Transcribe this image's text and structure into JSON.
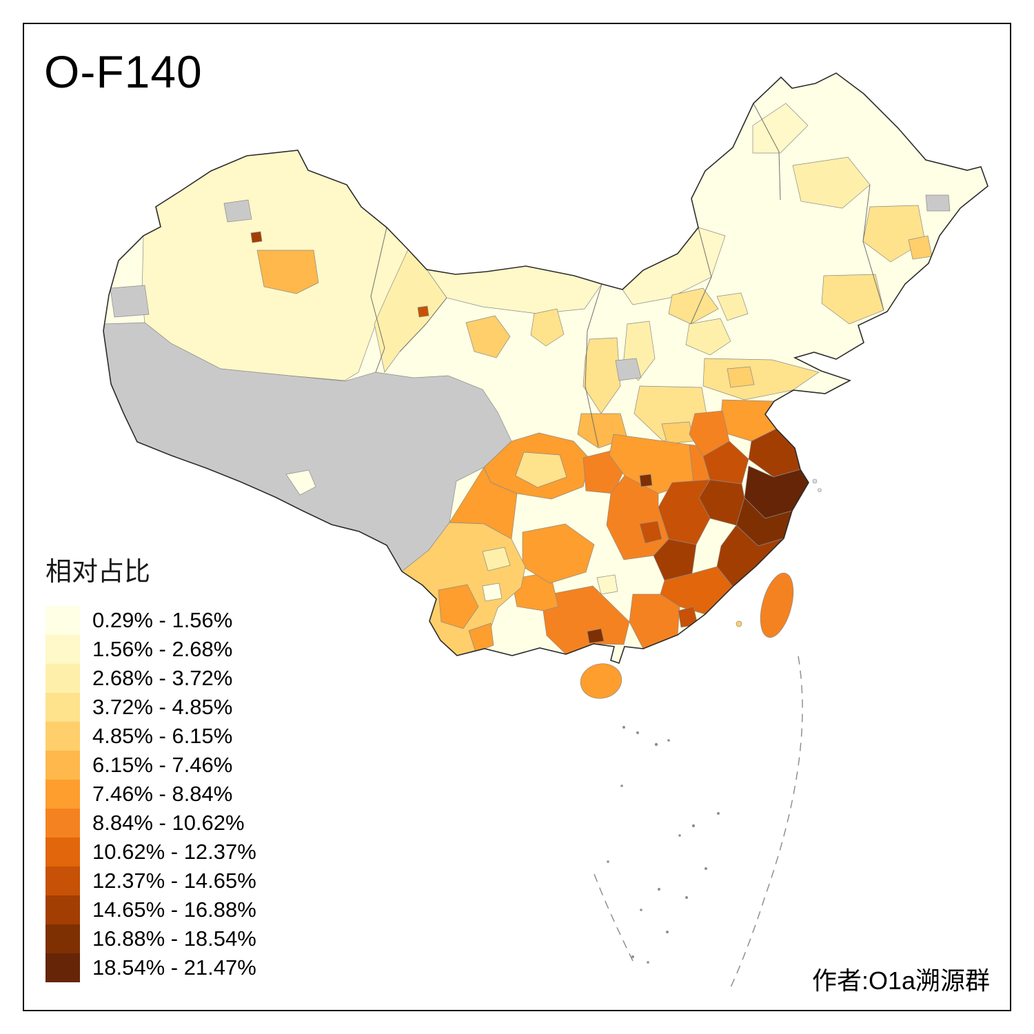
{
  "title": "O-F140",
  "legend": {
    "title": "相对占比",
    "items": [
      {
        "label": "0.29% - 1.56%",
        "color": "#FFFFE5"
      },
      {
        "label": "1.56% - 2.68%",
        "color": "#FFF8C8"
      },
      {
        "label": "2.68% - 3.72%",
        "color": "#FEF0AA"
      },
      {
        "label": "3.72% - 4.85%",
        "color": "#FEE28C"
      },
      {
        "label": "4.85% - 6.15%",
        "color": "#FECF6B"
      },
      {
        "label": "6.15% - 7.46%",
        "color": "#FEB84B"
      },
      {
        "label": "7.46% - 8.84%",
        "color": "#FD9E2E"
      },
      {
        "label": "8.84% - 10.62%",
        "color": "#F58220"
      },
      {
        "label": "10.62% - 12.37%",
        "color": "#E1660C"
      },
      {
        "label": "12.37% - 14.65%",
        "color": "#C75106"
      },
      {
        "label": "14.65% - 16.88%",
        "color": "#A33E03"
      },
      {
        "label": "16.88% - 18.54%",
        "color": "#7E3003"
      },
      {
        "label": "18.54% - 21.47%",
        "color": "#662506"
      }
    ]
  },
  "attribution": "作者:O1a溯源群",
  "map": {
    "name": "china-prefecture-choropleth",
    "no_data_color": "#C9C9C9",
    "outline_color": "#2B2B2B"
  }
}
